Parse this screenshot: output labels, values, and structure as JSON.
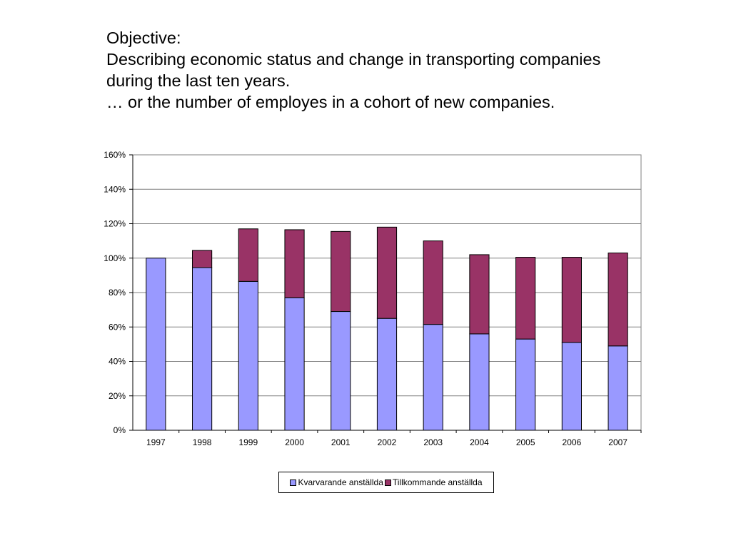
{
  "heading": {
    "line1": "Objective:",
    "line2": "Describing economic status and change in transporting companies",
    "line3": "during the last ten years.",
    "line4": "… or the number of employes in a cohort of new companies."
  },
  "colors": {
    "kvarvarande": "#9999ff",
    "tillkommande": "#993366",
    "grid": "#808080",
    "plot_border": "#808080"
  },
  "chart_data": {
    "type": "bar",
    "stacked": true,
    "title": "",
    "xlabel": "",
    "ylabel": "",
    "categories": [
      "1997",
      "1998",
      "1999",
      "2000",
      "2001",
      "2002",
      "2003",
      "2004",
      "2005",
      "2006",
      "2007"
    ],
    "series": [
      {
        "name": "Kvarvarande anställda",
        "values": [
          100,
          94.5,
          86.5,
          77,
          69,
          65,
          61.5,
          56,
          53,
          51,
          49
        ]
      },
      {
        "name": "Tillkommande anställda",
        "values": [
          0,
          10,
          30.5,
          39.5,
          46.5,
          53,
          48.5,
          46,
          47.5,
          49.5,
          54
        ]
      }
    ],
    "ylim": [
      0,
      160
    ],
    "yticks": [
      "0%",
      "20%",
      "40%",
      "60%",
      "80%",
      "100%",
      "120%",
      "140%",
      "160%"
    ],
    "grid": true,
    "legend_position": "bottom"
  }
}
